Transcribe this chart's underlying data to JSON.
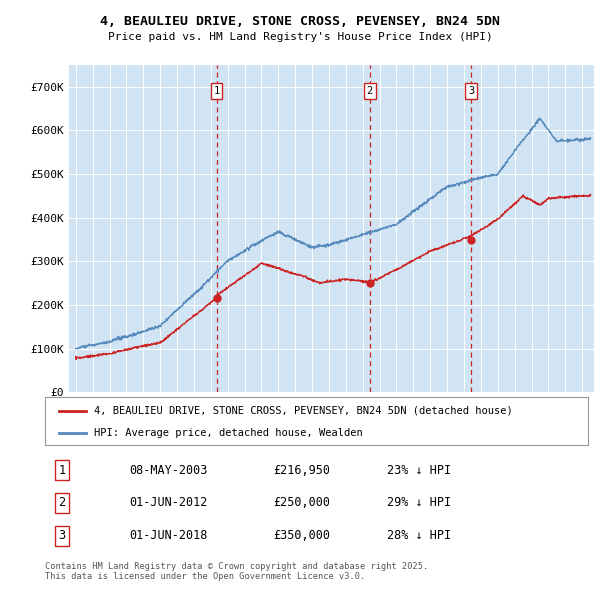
{
  "title_line1": "4, BEAULIEU DRIVE, STONE CROSS, PEVENSEY, BN24 5DN",
  "title_line2": "Price paid vs. HM Land Registry's House Price Index (HPI)",
  "ytick_labels": [
    "£0",
    "£100K",
    "£200K",
    "£300K",
    "£400K",
    "£500K",
    "£600K",
    "£700K"
  ],
  "yticks": [
    0,
    100000,
    200000,
    300000,
    400000,
    500000,
    600000,
    700000
  ],
  "hpi_color": "#5588bb",
  "hpi_fill_color": "#d0e4f4",
  "price_color": "#cc2222",
  "vline_color": "#cc2222",
  "sale_dates": [
    2003.35,
    2012.42,
    2018.42
  ],
  "sale_prices": [
    216950,
    250000,
    350000
  ],
  "sale_labels": [
    "1",
    "2",
    "3"
  ],
  "legend_line1": "4, BEAULIEU DRIVE, STONE CROSS, PEVENSEY, BN24 5DN (detached house)",
  "legend_line2": "HPI: Average price, detached house, Wealden",
  "table_data": [
    [
      "1",
      "08-MAY-2003",
      "£216,950",
      "23% ↓ HPI"
    ],
    [
      "2",
      "01-JUN-2012",
      "£250,000",
      "29% ↓ HPI"
    ],
    [
      "3",
      "01-JUN-2018",
      "£350,000",
      "28% ↓ HPI"
    ]
  ],
  "footnote": "Contains HM Land Registry data © Crown copyright and database right 2025.\nThis data is licensed under the Open Government Licence v3.0."
}
